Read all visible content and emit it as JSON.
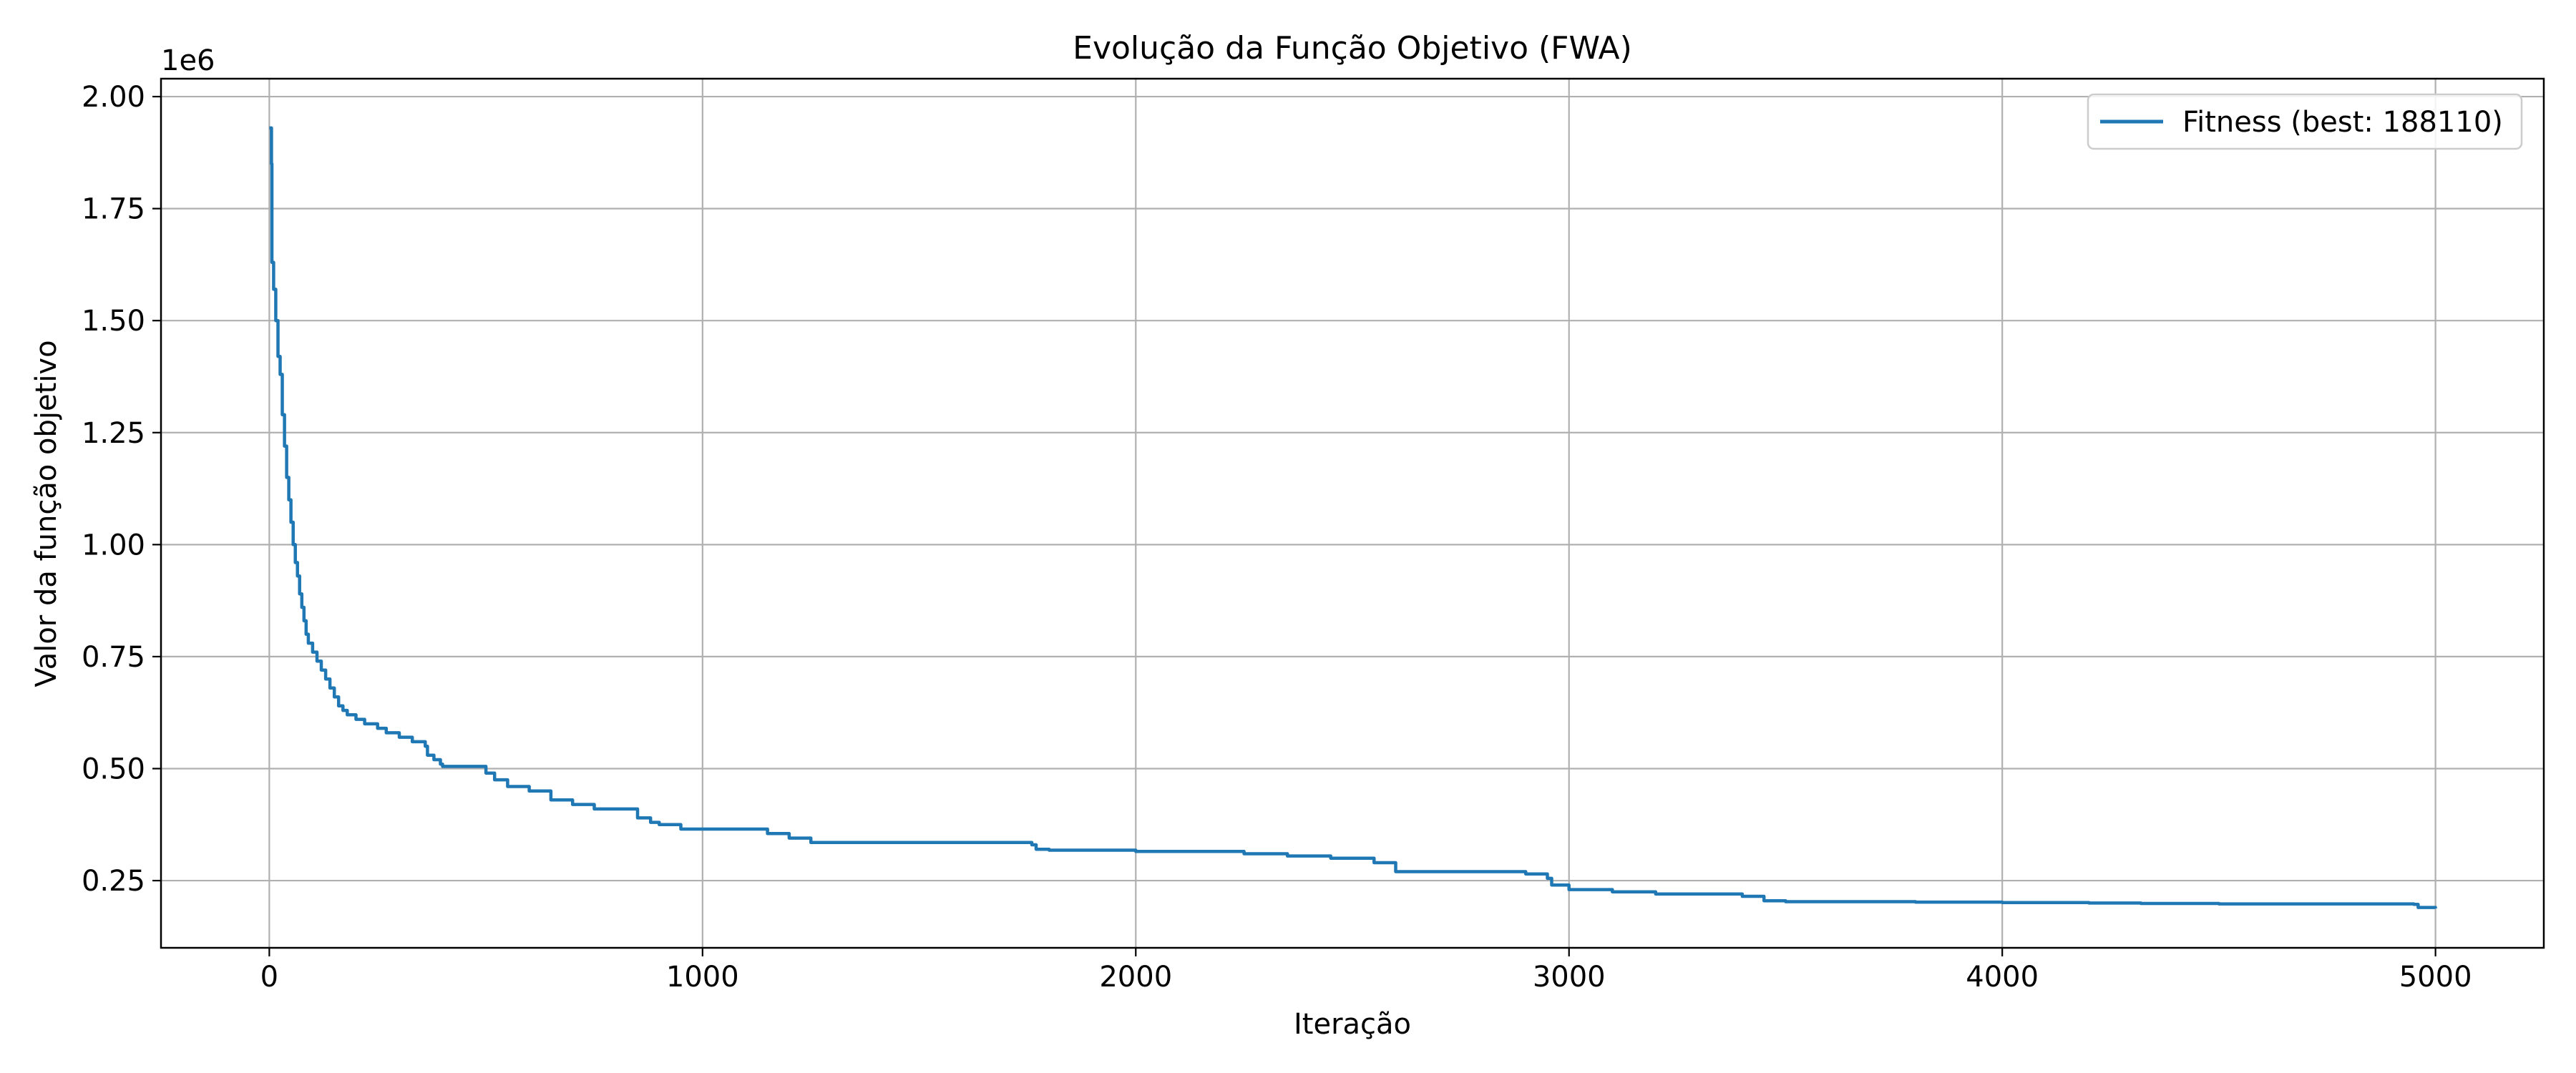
{
  "chart_data": {
    "type": "line",
    "title": "Evolução da Função Objetivo (FWA)",
    "xlabel": "Iteração",
    "ylabel": "Valor da função objetivo",
    "y_offset_label": "1e6",
    "xlim": [
      -250,
      5250
    ],
    "ylim": [
      0.1,
      2.04
    ],
    "x_ticks": [
      0,
      1000,
      2000,
      3000,
      4000,
      5000
    ],
    "x_tick_labels": [
      "0",
      "1000",
      "2000",
      "3000",
      "4000",
      "5000"
    ],
    "y_ticks": [
      0.25,
      0.5,
      0.75,
      1.0,
      1.25,
      1.5,
      1.75,
      2.0
    ],
    "y_tick_labels": [
      "0.25",
      "0.50",
      "0.75",
      "1.00",
      "1.25",
      "1.50",
      "1.75",
      "2.00"
    ],
    "grid": true,
    "legend_position": "top-right",
    "series": [
      {
        "name": "Fitness (best: 188110)",
        "color": "#1f77b4",
        "x": [
          0,
          5,
          6,
          10,
          15,
          20,
          25,
          30,
          35,
          40,
          45,
          50,
          55,
          60,
          65,
          70,
          75,
          80,
          85,
          90,
          100,
          110,
          120,
          130,
          140,
          150,
          160,
          170,
          180,
          200,
          220,
          250,
          270,
          300,
          330,
          360,
          365,
          380,
          395,
          400,
          500,
          520,
          550,
          600,
          650,
          700,
          750,
          850,
          880,
          900,
          950,
          1150,
          1200,
          1250,
          1760,
          1770,
          1800,
          2000,
          2250,
          2350,
          2450,
          2550,
          2600,
          2900,
          2950,
          2960,
          3000,
          3100,
          3200,
          3400,
          3450,
          3500,
          3800,
          4000,
          4200,
          4320,
          4500,
          4950,
          4960,
          5000
        ],
        "y": [
          1.93,
          1.85,
          1.63,
          1.57,
          1.5,
          1.42,
          1.38,
          1.29,
          1.22,
          1.15,
          1.1,
          1.05,
          1.0,
          0.96,
          0.93,
          0.89,
          0.86,
          0.83,
          0.8,
          0.78,
          0.76,
          0.74,
          0.72,
          0.7,
          0.68,
          0.66,
          0.64,
          0.63,
          0.62,
          0.61,
          0.6,
          0.59,
          0.58,
          0.57,
          0.56,
          0.55,
          0.53,
          0.52,
          0.51,
          0.505,
          0.49,
          0.475,
          0.46,
          0.45,
          0.43,
          0.42,
          0.41,
          0.39,
          0.38,
          0.375,
          0.365,
          0.355,
          0.345,
          0.335,
          0.33,
          0.32,
          0.318,
          0.315,
          0.31,
          0.305,
          0.3,
          0.29,
          0.27,
          0.265,
          0.255,
          0.24,
          0.23,
          0.225,
          0.22,
          0.215,
          0.205,
          0.203,
          0.202,
          0.201,
          0.2,
          0.199,
          0.198,
          0.197,
          0.19,
          0.188
        ]
      }
    ]
  }
}
